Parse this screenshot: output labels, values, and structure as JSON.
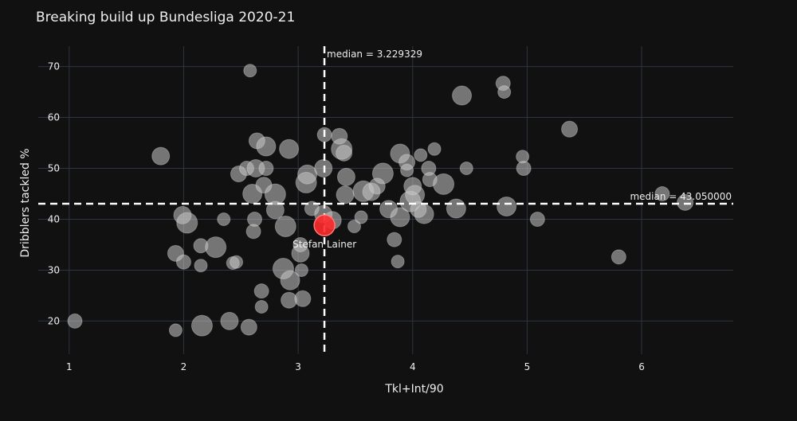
{
  "chart_data": {
    "type": "scatter",
    "title": "Breaking build up Bundesliga 2020-21",
    "xlabel": "Tkl+Int/90",
    "ylabel": "Dribblers tackled %",
    "xlim": [
      0.73,
      6.8
    ],
    "ylim": [
      13.5,
      74
    ],
    "x_ticks": [
      1,
      2,
      3,
      4,
      5,
      6
    ],
    "y_ticks": [
      20,
      30,
      40,
      50,
      60,
      70
    ],
    "grid": true,
    "medians": {
      "x": 3.229329,
      "y": 43.05,
      "x_label": "median = 3.229329",
      "y_label": "median = 43.050000"
    },
    "highlight": {
      "name": "Stefan Lainer",
      "x": 3.23,
      "y": 38.8,
      "size": 13,
      "color": "#ff2b2b"
    },
    "colors": {
      "background": "#111111",
      "grid": "#2e3440",
      "point": "#c8c8c8",
      "median_line": "#ffffff",
      "text": "#eeeeee"
    },
    "points": [
      [
        1.05,
        20.0,
        9
      ],
      [
        1.8,
        52.4,
        11
      ],
      [
        1.93,
        18.2,
        8
      ],
      [
        1.93,
        33.3,
        10
      ],
      [
        1.99,
        40.8,
        11
      ],
      [
        2.0,
        31.6,
        9
      ],
      [
        2.03,
        39.3,
        13
      ],
      [
        2.15,
        34.8,
        9
      ],
      [
        2.15,
        30.9,
        8
      ],
      [
        2.16,
        19.1,
        13
      ],
      [
        2.28,
        34.5,
        13
      ],
      [
        2.35,
        40.0,
        8
      ],
      [
        2.4,
        20.0,
        11
      ],
      [
        2.43,
        31.4,
        8
      ],
      [
        2.48,
        48.9,
        10
      ],
      [
        2.46,
        31.6,
        8
      ],
      [
        2.55,
        50.0,
        9
      ],
      [
        2.57,
        18.8,
        10
      ],
      [
        2.58,
        69.2,
        8
      ],
      [
        2.6,
        45.0,
        12
      ],
      [
        2.63,
        50.0,
        11
      ],
      [
        2.62,
        40.0,
        9
      ],
      [
        2.61,
        37.6,
        9
      ],
      [
        2.64,
        55.4,
        10
      ],
      [
        2.68,
        25.9,
        9
      ],
      [
        2.68,
        22.8,
        8
      ],
      [
        2.72,
        50.0,
        9
      ],
      [
        2.7,
        46.7,
        10
      ],
      [
        2.72,
        54.3,
        12
      ],
      [
        2.8,
        44.9,
        13
      ],
      [
        2.8,
        41.8,
        11
      ],
      [
        2.87,
        30.3,
        13
      ],
      [
        2.89,
        38.6,
        13
      ],
      [
        2.92,
        53.8,
        12
      ],
      [
        2.93,
        28.0,
        12
      ],
      [
        2.92,
        24.1,
        10
      ],
      [
        3.02,
        33.3,
        11
      ],
      [
        3.02,
        35.0,
        9
      ],
      [
        3.03,
        30.0,
        8
      ],
      [
        3.04,
        24.4,
        10
      ],
      [
        3.07,
        47.2,
        13
      ],
      [
        3.08,
        48.8,
        12
      ],
      [
        3.12,
        42.1,
        9
      ],
      [
        3.22,
        41.0,
        11
      ],
      [
        3.22,
        50.0,
        11
      ],
      [
        3.23,
        56.6,
        9
      ],
      [
        3.3,
        39.8,
        11
      ],
      [
        3.36,
        56.3,
        10
      ],
      [
        3.38,
        53.8,
        13
      ],
      [
        3.4,
        53.0,
        10
      ],
      [
        3.42,
        48.3,
        11
      ],
      [
        3.41,
        44.8,
        11
      ],
      [
        3.49,
        38.6,
        8
      ],
      [
        3.55,
        40.4,
        8
      ],
      [
        3.57,
        45.5,
        13
      ],
      [
        3.64,
        45.4,
        11
      ],
      [
        3.69,
        46.5,
        10
      ],
      [
        3.74,
        49.0,
        13
      ],
      [
        3.79,
        42.0,
        11
      ],
      [
        3.84,
        36.0,
        9
      ],
      [
        3.87,
        31.7,
        8
      ],
      [
        3.89,
        52.9,
        12
      ],
      [
        3.89,
        40.4,
        12
      ],
      [
        3.95,
        51.2,
        10
      ],
      [
        3.95,
        49.6,
        8
      ],
      [
        3.98,
        43.5,
        13
      ],
      [
        4.02,
        44.8,
        12
      ],
      [
        4.0,
        46.5,
        11
      ],
      [
        4.05,
        41.9,
        10
      ],
      [
        4.07,
        52.6,
        8
      ],
      [
        4.1,
        41.0,
        12
      ],
      [
        4.14,
        50.0,
        9
      ],
      [
        4.15,
        47.8,
        9
      ],
      [
        4.19,
        53.8,
        8
      ],
      [
        4.27,
        46.9,
        13
      ],
      [
        4.38,
        42.1,
        12
      ],
      [
        4.43,
        64.3,
        12
      ],
      [
        4.47,
        50.0,
        8
      ],
      [
        4.79,
        66.7,
        9
      ],
      [
        4.8,
        65.0,
        8
      ],
      [
        4.82,
        42.5,
        12
      ],
      [
        4.96,
        52.3,
        8
      ],
      [
        4.97,
        50.0,
        9
      ],
      [
        5.09,
        40.0,
        9
      ],
      [
        5.37,
        57.7,
        10
      ],
      [
        5.8,
        32.6,
        9
      ],
      [
        6.18,
        45.0,
        9
      ],
      [
        6.38,
        43.3,
        10
      ]
    ]
  }
}
